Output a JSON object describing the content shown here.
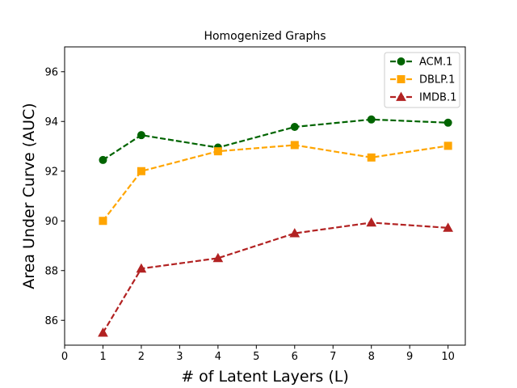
{
  "chart_data": {
    "type": "line",
    "title": "Homogenized Graphs",
    "xlabel": "# of Latent Layers (L)",
    "ylabel": "Area Under Curve (AUC)",
    "x_ticks": [
      0,
      1,
      2,
      3,
      4,
      5,
      6,
      7,
      8,
      9,
      10
    ],
    "y_ticks": [
      86,
      88,
      90,
      92,
      94,
      96
    ],
    "xlim": [
      0,
      10.45
    ],
    "ylim": [
      85,
      97
    ],
    "x": [
      1,
      2,
      4,
      6,
      8,
      10
    ],
    "legend_position": "top-right",
    "grid": false,
    "series": [
      {
        "name": "ACM.1",
        "values": [
          92.45,
          93.45,
          92.95,
          93.78,
          94.08,
          93.95
        ],
        "color": "#006400",
        "marker": "circle",
        "line_style": "dashed"
      },
      {
        "name": "DBLP.1",
        "values": [
          90.0,
          92.0,
          92.8,
          93.05,
          92.55,
          93.02
        ],
        "color": "#FFA500",
        "marker": "square",
        "line_style": "dashed"
      },
      {
        "name": "IMDB.1",
        "values": [
          85.5,
          88.08,
          88.5,
          89.5,
          89.93,
          89.72
        ],
        "color": "#B22222",
        "marker": "triangle-up",
        "line_style": "dashed"
      }
    ]
  }
}
